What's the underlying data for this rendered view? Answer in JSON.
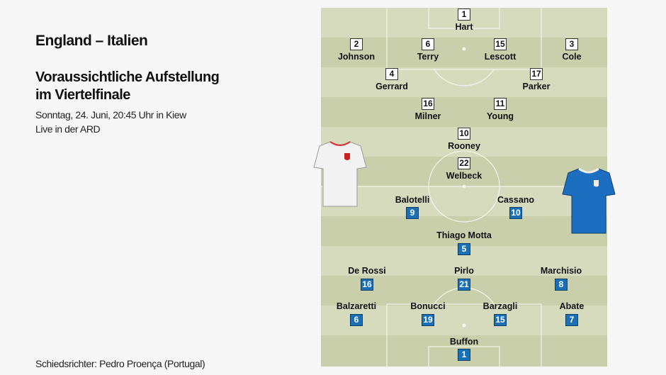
{
  "match_title": "England – Italien",
  "subtitle_line1": "Voraussichtliche Aufstellung",
  "subtitle_line2": "im Viertelfinale",
  "date": "Sonntag, 24. Juni, 20:45 Uhr in Kiew",
  "broadcast": "Live in der ARD",
  "referee": "Schiedsrichter: Pedro Proença (Portugal)",
  "colors": {
    "england": "#ffffff",
    "italy": "#1a6fb5",
    "pitch_light": "#d6dbbe",
    "pitch_dark": "#c9cfaa"
  },
  "england": [
    {
      "number": "1",
      "name": "Hart"
    },
    {
      "number": "2",
      "name": "Johnson"
    },
    {
      "number": "6",
      "name": "Terry"
    },
    {
      "number": "15",
      "name": "Lescott"
    },
    {
      "number": "3",
      "name": "Cole"
    },
    {
      "number": "4",
      "name": "Gerrard"
    },
    {
      "number": "17",
      "name": "Parker"
    },
    {
      "number": "16",
      "name": "Milner"
    },
    {
      "number": "11",
      "name": "Young"
    },
    {
      "number": "10",
      "name": "Rooney"
    },
    {
      "number": "22",
      "name": "Welbeck"
    }
  ],
  "italy": [
    {
      "number": "9",
      "name": "Balotelli"
    },
    {
      "number": "10",
      "name": "Cassano"
    },
    {
      "number": "5",
      "name": "Thiago Motta"
    },
    {
      "number": "16",
      "name": "De Rossi"
    },
    {
      "number": "21",
      "name": "Pirlo"
    },
    {
      "number": "8",
      "name": "Marchisio"
    },
    {
      "number": "6",
      "name": "Balzaretti"
    },
    {
      "number": "19",
      "name": "Bonucci"
    },
    {
      "number": "15",
      "name": "Barzagli"
    },
    {
      "number": "7",
      "name": "Abate"
    },
    {
      "number": "1",
      "name": "Buffon"
    }
  ]
}
